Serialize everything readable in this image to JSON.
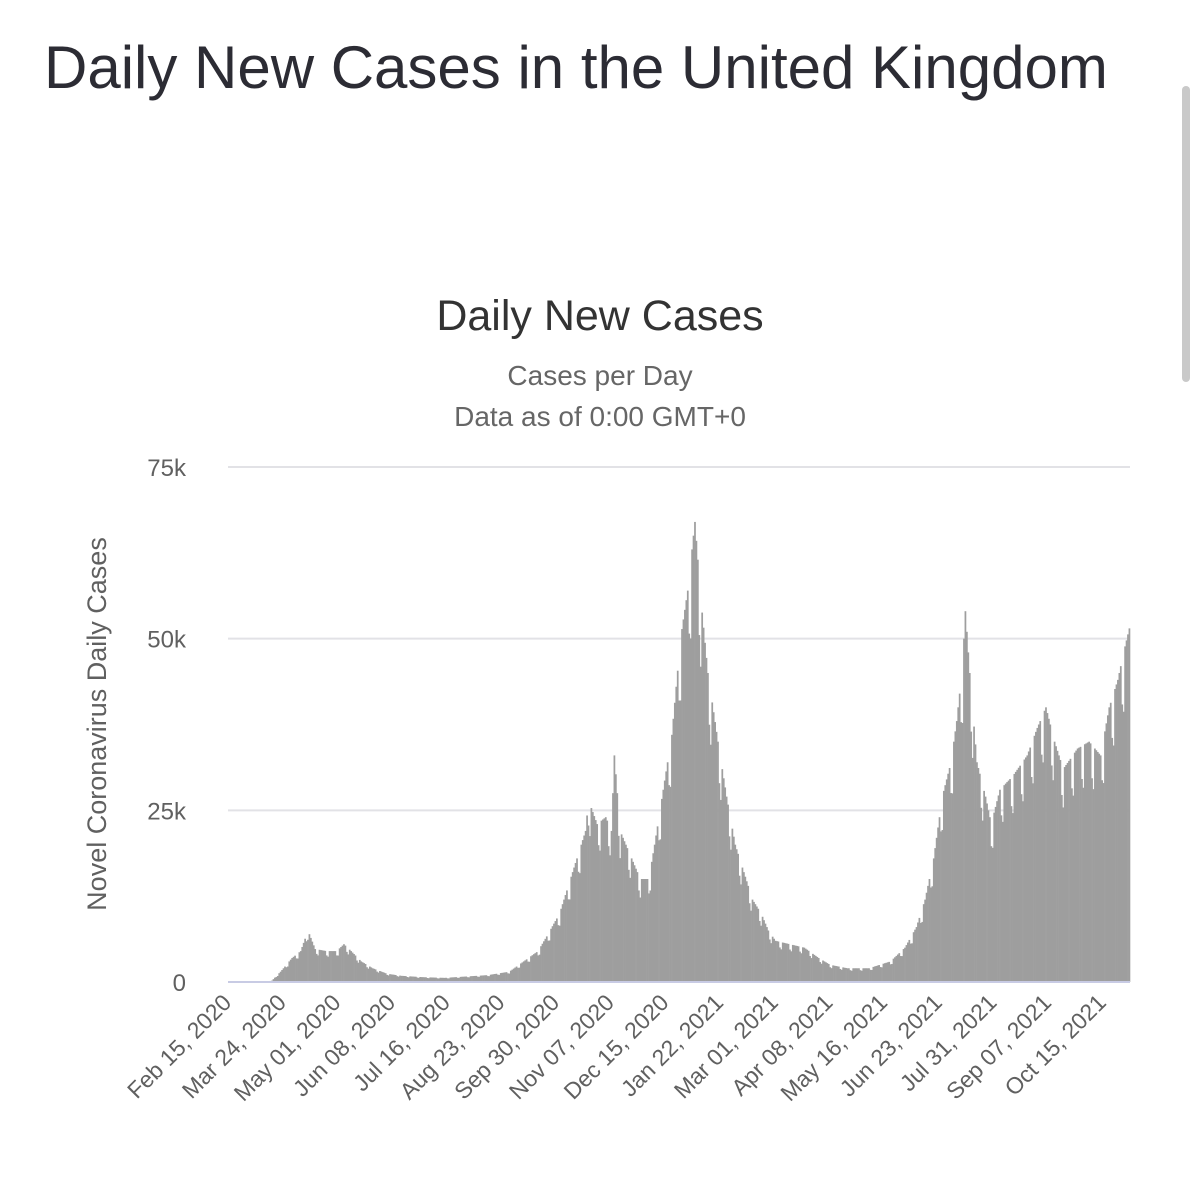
{
  "page": {
    "title": "Daily New Cases in the United Kingdom"
  },
  "colors": {
    "bar": "#9e9e9e",
    "grid": "#e2e2e6",
    "axis": "#c8cbe4",
    "title": "#2c2c34"
  },
  "chart_data": {
    "type": "bar",
    "title": "Daily New Cases",
    "subtitle_line1": "Cases per Day",
    "subtitle_line2": "Data as of 0:00 GMT+0",
    "ylabel": "Novel Coronavirus Daily Cases",
    "xlabel": "",
    "ylim": [
      0,
      75000
    ],
    "y_ticks": [
      {
        "value": 0,
        "label": "0"
      },
      {
        "value": 25000,
        "label": "25k"
      },
      {
        "value": 50000,
        "label": "50k"
      },
      {
        "value": 75000,
        "label": "75k"
      }
    ],
    "x_tick_labels": [
      "Feb 15, 2020",
      "Mar 24, 2020",
      "May 01, 2020",
      "Jun 08, 2020",
      "Jul 16, 2020",
      "Aug 23, 2020",
      "Sep 30, 2020",
      "Nov 07, 2020",
      "Dec 15, 2020",
      "Jan 22, 2021",
      "Mar 01, 2021",
      "Apr 08, 2021",
      "May 16, 2021",
      "Jun 23, 2021",
      "Jul 31, 2021",
      "Sep 07, 2021",
      "Oct 15, 2021"
    ],
    "x_start": "Feb 15, 2020",
    "x_end": "Oct 24, 2021",
    "key_points": [
      {
        "day": 0,
        "value": 0
      },
      {
        "day": 26,
        "value": 0
      },
      {
        "day": 30,
        "value": 200
      },
      {
        "day": 36,
        "value": 1500
      },
      {
        "day": 44,
        "value": 3500
      },
      {
        "day": 50,
        "value": 4500
      },
      {
        "day": 55,
        "value": 7500
      },
      {
        "day": 60,
        "value": 4800
      },
      {
        "day": 68,
        "value": 4500
      },
      {
        "day": 75,
        "value": 4500
      },
      {
        "day": 80,
        "value": 5500
      },
      {
        "day": 85,
        "value": 4500
      },
      {
        "day": 92,
        "value": 3000
      },
      {
        "day": 100,
        "value": 2000
      },
      {
        "day": 110,
        "value": 1200
      },
      {
        "day": 120,
        "value": 900
      },
      {
        "day": 135,
        "value": 700
      },
      {
        "day": 150,
        "value": 600
      },
      {
        "day": 165,
        "value": 800
      },
      {
        "day": 180,
        "value": 1000
      },
      {
        "day": 195,
        "value": 1500
      },
      {
        "day": 205,
        "value": 3000
      },
      {
        "day": 215,
        "value": 4500
      },
      {
        "day": 222,
        "value": 7000
      },
      {
        "day": 230,
        "value": 10000
      },
      {
        "day": 236,
        "value": 14000
      },
      {
        "day": 242,
        "value": 18000
      },
      {
        "day": 248,
        "value": 22000
      },
      {
        "day": 250,
        "value": 26500
      },
      {
        "day": 256,
        "value": 23000
      },
      {
        "day": 262,
        "value": 24000
      },
      {
        "day": 266,
        "value": 22000
      },
      {
        "day": 268,
        "value": 33000
      },
      {
        "day": 272,
        "value": 22000
      },
      {
        "day": 280,
        "value": 18000
      },
      {
        "day": 286,
        "value": 15000
      },
      {
        "day": 292,
        "value": 15000
      },
      {
        "day": 296,
        "value": 20000
      },
      {
        "day": 302,
        "value": 28000
      },
      {
        "day": 308,
        "value": 36000
      },
      {
        "day": 314,
        "value": 50000
      },
      {
        "day": 319,
        "value": 57000
      },
      {
        "day": 324,
        "value": 67000
      },
      {
        "day": 328,
        "value": 56000
      },
      {
        "day": 333,
        "value": 45000
      },
      {
        "day": 340,
        "value": 35000
      },
      {
        "day": 346,
        "value": 27000
      },
      {
        "day": 352,
        "value": 20000
      },
      {
        "day": 358,
        "value": 16000
      },
      {
        "day": 364,
        "value": 12000
      },
      {
        "day": 370,
        "value": 10000
      },
      {
        "day": 375,
        "value": 7500
      },
      {
        "day": 380,
        "value": 6000
      },
      {
        "day": 390,
        "value": 5500
      },
      {
        "day": 400,
        "value": 5000
      },
      {
        "day": 410,
        "value": 3500
      },
      {
        "day": 418,
        "value": 2500
      },
      {
        "day": 430,
        "value": 2000
      },
      {
        "day": 445,
        "value": 2000
      },
      {
        "day": 460,
        "value": 3000
      },
      {
        "day": 470,
        "value": 5000
      },
      {
        "day": 478,
        "value": 8000
      },
      {
        "day": 484,
        "value": 12000
      },
      {
        "day": 490,
        "value": 18000
      },
      {
        "day": 496,
        "value": 27000
      },
      {
        "day": 502,
        "value": 32000
      },
      {
        "day": 506,
        "value": 38000
      },
      {
        "day": 510,
        "value": 46000
      },
      {
        "day": 512,
        "value": 54000
      },
      {
        "day": 515,
        "value": 45000
      },
      {
        "day": 520,
        "value": 32000
      },
      {
        "day": 526,
        "value": 27000
      },
      {
        "day": 530,
        "value": 23000
      },
      {
        "day": 536,
        "value": 28000
      },
      {
        "day": 545,
        "value": 30000
      },
      {
        "day": 555,
        "value": 33000
      },
      {
        "day": 562,
        "value": 37000
      },
      {
        "day": 568,
        "value": 40000
      },
      {
        "day": 574,
        "value": 35000
      },
      {
        "day": 580,
        "value": 31000
      },
      {
        "day": 590,
        "value": 34000
      },
      {
        "day": 598,
        "value": 35000
      },
      {
        "day": 606,
        "value": 33000
      },
      {
        "day": 612,
        "value": 40000
      },
      {
        "day": 618,
        "value": 44000
      },
      {
        "day": 622,
        "value": 48000
      },
      {
        "day": 626,
        "value": 51500
      }
    ]
  }
}
